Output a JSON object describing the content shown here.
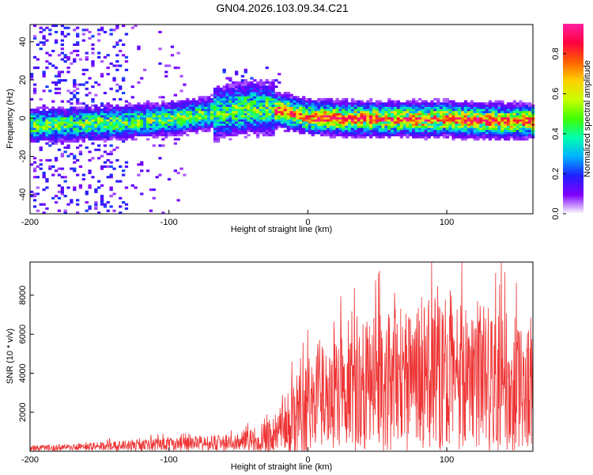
{
  "title": "GN04.2026.103.09.34.C21",
  "chart_data": [
    {
      "type": "heatmap",
      "xlabel": "Height of straight line (km)",
      "ylabel": "Frequency (Hz)",
      "xlim": [
        -200,
        162
      ],
      "ylim": [
        -50,
        49
      ],
      "xticks": [
        -200,
        -100,
        0,
        100
      ],
      "yticks": [
        -40,
        -20,
        0,
        20,
        40
      ],
      "colorbar": {
        "label": "Normalized spectral amplitude",
        "range": [
          0.0,
          0.95
        ],
        "ticks": [
          0.0,
          0.2,
          0.4,
          0.6,
          0.8
        ],
        "tick_labels": [
          "0.0",
          "0.2",
          "0.4",
          "0.6",
          "0.8"
        ],
        "colors": [
          "#ffffff",
          "#7f00ff",
          "#2020ff",
          "#00b0ff",
          "#00ffb0",
          "#40ff00",
          "#c8ff00",
          "#ffd000",
          "#ff6000",
          "#ff0040",
          "#ff20a0"
        ]
      },
      "band_center_hz": [
        {
          "x": -180,
          "y": -4
        },
        {
          "x": -150,
          "y": -3
        },
        {
          "x": -120,
          "y": -2
        },
        {
          "x": -90,
          "y": 0
        },
        {
          "x": -60,
          "y": 3
        },
        {
          "x": -40,
          "y": 5
        },
        {
          "x": -25,
          "y": 4
        },
        {
          "x": 0,
          "y": 0
        },
        {
          "x": 50,
          "y": -1
        },
        {
          "x": 100,
          "y": -1
        },
        {
          "x": 140,
          "y": -2
        },
        {
          "x": 162,
          "y": -2
        }
      ]
    },
    {
      "type": "line",
      "xlabel": "Height of straight line (km)",
      "ylabel": "SNR (10 * v/v)",
      "xlim": [
        -200,
        162
      ],
      "ylim": [
        0,
        9700
      ],
      "xticks": [
        -200,
        -100,
        0,
        100
      ],
      "yticks": [
        2000,
        4000,
        6000,
        8000
      ],
      "color": "#ee3333",
      "envelope": [
        {
          "x": -200,
          "mean": 150,
          "amp": 150
        },
        {
          "x": -150,
          "mean": 250,
          "amp": 250
        },
        {
          "x": -100,
          "mean": 350,
          "amp": 400
        },
        {
          "x": -50,
          "mean": 450,
          "amp": 500
        },
        {
          "x": -30,
          "mean": 700,
          "amp": 900
        },
        {
          "x": -15,
          "mean": 1300,
          "amp": 1800
        },
        {
          "x": 0,
          "mean": 2500,
          "amp": 3000
        },
        {
          "x": 20,
          "mean": 3000,
          "amp": 3500
        },
        {
          "x": 50,
          "mean": 3500,
          "amp": 4000
        },
        {
          "x": 100,
          "mean": 4000,
          "amp": 4500
        },
        {
          "x": 130,
          "mean": 3700,
          "amp": 4500
        },
        {
          "x": 162,
          "mean": 3200,
          "amp": 3500
        }
      ]
    }
  ]
}
